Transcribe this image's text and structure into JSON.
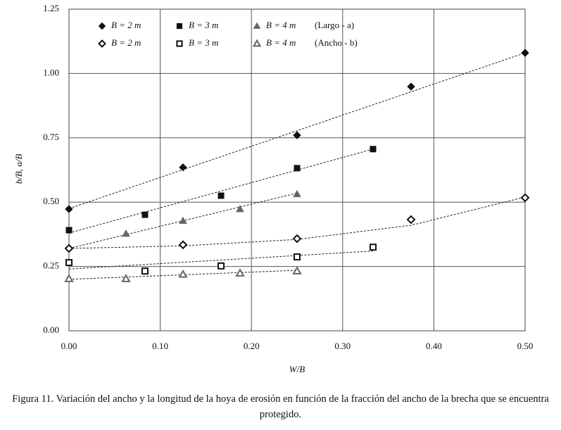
{
  "chart_data": {
    "type": "scatter",
    "x_label": "W/B",
    "y_label": "b/B, a/B",
    "xlim": [
      0,
      0.5
    ],
    "ylim": [
      0,
      1.25
    ],
    "xticks": [
      {
        "value": 0,
        "label": "0.00"
      },
      {
        "value": 0.1,
        "label": "0.10"
      },
      {
        "value": 0.2,
        "label": "0.20"
      },
      {
        "value": 0.3,
        "label": "0.30"
      },
      {
        "value": 0.4,
        "label": "0.40"
      },
      {
        "value": 0.5,
        "label": "0.50"
      }
    ],
    "yticks": [
      {
        "value": 0,
        "label": "0.00"
      },
      {
        "value": 0.25,
        "label": "0.25"
      },
      {
        "value": 0.5,
        "label": "0.50"
      },
      {
        "value": 0.75,
        "label": "0.75"
      },
      {
        "value": 1,
        "label": "1.00"
      },
      {
        "value": 1.25,
        "label": "1.25"
      }
    ],
    "grid": true,
    "legend_rows": [
      "(Largo - a)",
      "(Ancho - b)"
    ],
    "series": [
      {
        "name": "B = 2 m",
        "color": "#111111",
        "marker": "diamond",
        "filled": true,
        "x": [
          0,
          0.125,
          0.25,
          0.375,
          0.5
        ],
        "values": [
          0.473,
          0.635,
          0.76,
          0.949,
          1.08
        ],
        "trend_x": [
          0,
          0.5
        ],
        "trend_y": [
          0.475,
          1.08
        ]
      },
      {
        "name": "B = 3 m",
        "color": "#111111",
        "marker": "square",
        "filled": true,
        "x": [
          0,
          0.0833,
          0.1667,
          0.25,
          0.3333
        ],
        "values": [
          0.391,
          0.451,
          0.525,
          0.632,
          0.706
        ],
        "trend_x": [
          0,
          0.3333
        ],
        "trend_y": [
          0.38,
          0.706
        ]
      },
      {
        "name": "B = 4 m",
        "color": "#666666",
        "marker": "triangle",
        "filled": true,
        "x": [
          0.0625,
          0.125,
          0.1875,
          0.25
        ],
        "values": [
          0.377,
          0.427,
          0.473,
          0.531
        ],
        "trend_x": [
          0,
          0.25
        ],
        "trend_y": [
          0.32,
          0.535
        ]
      },
      {
        "name": "B = 2 m",
        "color": "#111111",
        "marker": "diamond",
        "filled": false,
        "x": [
          0,
          0.125,
          0.25,
          0.375,
          0.5
        ],
        "values": [
          0.32,
          0.334,
          0.358,
          0.432,
          0.517
        ],
        "trend_x": [
          0,
          0.125,
          0.25,
          0.375,
          0.5
        ],
        "trend_y": [
          0.32,
          0.33,
          0.355,
          0.41,
          0.52
        ]
      },
      {
        "name": "B = 3 m",
        "color": "#111111",
        "marker": "square",
        "filled": false,
        "x": [
          0,
          0.0833,
          0.1667,
          0.25,
          0.3333
        ],
        "values": [
          0.265,
          0.232,
          0.252,
          0.287,
          0.325
        ],
        "trend_x": [
          0,
          0.3333
        ],
        "trend_y": [
          0.24,
          0.31
        ]
      },
      {
        "name": "B = 4 m",
        "color": "#666666",
        "marker": "triangle",
        "filled": false,
        "x": [
          0,
          0.0625,
          0.125,
          0.1875,
          0.25
        ],
        "values": [
          0.202,
          0.202,
          0.219,
          0.224,
          0.232
        ],
        "trend_x": [
          0,
          0.25
        ],
        "trend_y": [
          0.2,
          0.235
        ]
      }
    ]
  },
  "caption": "Figura 11. Variación del ancho y la longitud de la hoya de erosión en función de la fracción del ancho de la brecha que se encuentra protegido."
}
